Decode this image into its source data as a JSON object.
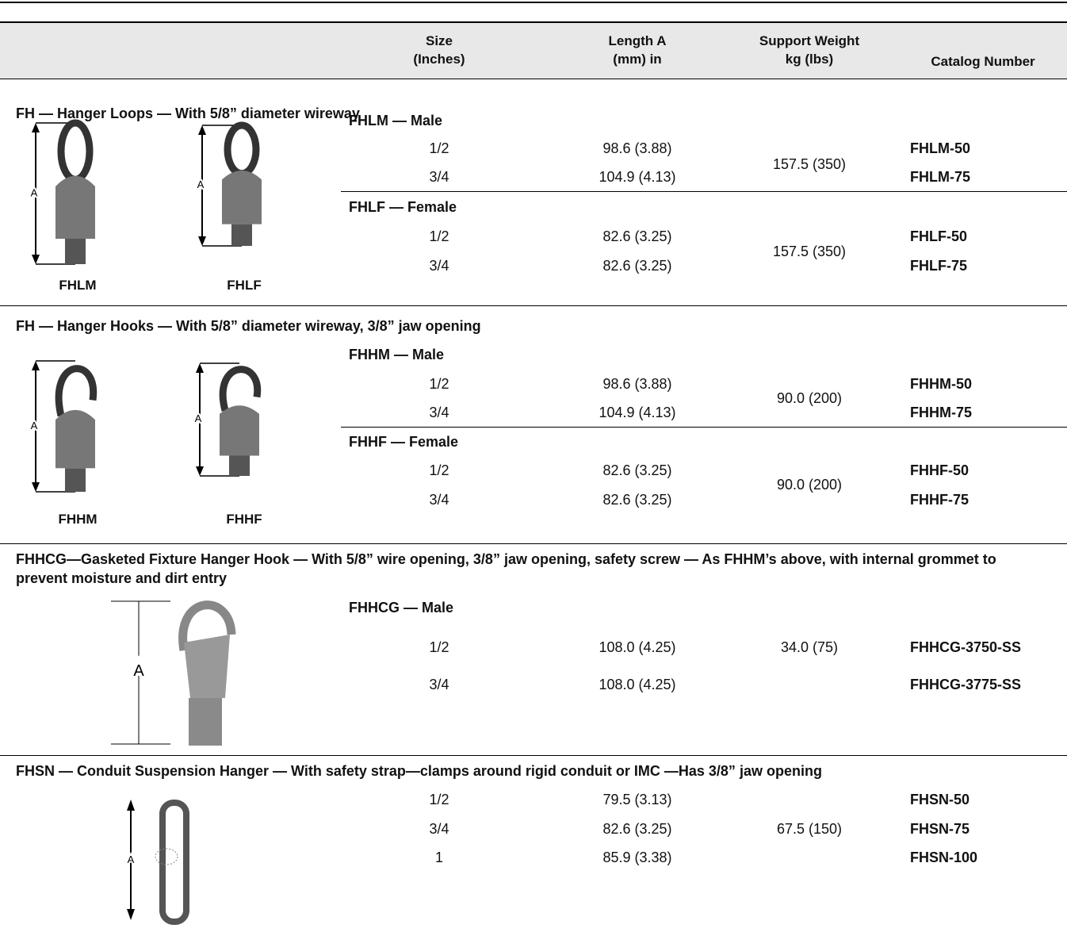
{
  "header": {
    "columns": [
      [
        "Size",
        "(Inches)"
      ],
      [
        "Length A",
        "(mm) in"
      ],
      [
        "Support Weight",
        "kg (lbs)"
      ],
      [
        "Catalog Number"
      ]
    ]
  },
  "sections": [
    {
      "title": "FH — Hanger Loops — With 5/8” diameter wireway",
      "images": [
        {
          "caption": "FHLM",
          "dimension": "A"
        },
        {
          "caption": "FHLF",
          "dimension": "A"
        }
      ],
      "groups": [
        {
          "subtitle": "FHLM — Male",
          "weight": "157.5 (350)",
          "rows": [
            [
              "1/2",
              "98.6 (3.88)",
              "FHLM-50"
            ],
            [
              "3/4",
              "104.9 (4.13)",
              "FHLM-75"
            ]
          ]
        },
        {
          "subtitle": "FHLF — Female",
          "weight": "157.5 (350)",
          "rows": [
            [
              "1/2",
              "82.6 (3.25)",
              "FHLF-50"
            ],
            [
              "3/4",
              "82.6 (3.25)",
              "FHLF-75"
            ]
          ]
        }
      ]
    },
    {
      "title": "FH — Hanger Hooks — With 5/8” diameter wireway, 3/8” jaw opening",
      "images": [
        {
          "caption": "FHHM",
          "dimension": "A"
        },
        {
          "caption": "FHHF",
          "dimension": "A"
        }
      ],
      "groups": [
        {
          "subtitle": "FHHM — Male",
          "weight": "90.0 (200)",
          "rows": [
            [
              "1/2",
              "98.6 (3.88)",
              "FHHM-50"
            ],
            [
              "3/4",
              "104.9 (4.13)",
              "FHHM-75"
            ]
          ]
        },
        {
          "subtitle": "FHHF — Female",
          "weight": "90.0 (200)",
          "rows": [
            [
              "1/2",
              "82.6 (3.25)",
              "FHHF-50"
            ],
            [
              "3/4",
              "82.6 (3.25)",
              "FHHF-75"
            ]
          ]
        }
      ]
    },
    {
      "title": "FHHCG—Gasketed Fixture Hanger Hook — With 5/8” wire opening, 3/8” jaw opening, safety screw — As FHHM’s above, with internal grommet to prevent moisture and dirt entry",
      "images": [
        {
          "dimension": "A"
        }
      ],
      "groups": [
        {
          "subtitle": "FHHCG — Male",
          "weight": "34.0 (75)",
          "rows": [
            [
              "1/2",
              "108.0 (4.25)",
              "FHHCG-3750-SS"
            ],
            [
              "3/4",
              "108.0 (4.25)",
              "FHHCG-3775-SS"
            ]
          ]
        }
      ]
    },
    {
      "title": "FHSN — Conduit Suspension Hanger — With safety strap—clamps around rigid conduit or IMC —Has 3/8” jaw opening",
      "images": [
        {
          "dimension": "A"
        }
      ],
      "groups": [
        {
          "weight": "67.5 (150)",
          "rows": [
            [
              "1/2",
              "79.5 (3.13)",
              "FHSN-50"
            ],
            [
              "3/4",
              "82.6 (3.25)",
              "FHSN-75"
            ],
            [
              "1",
              "85.9 (3.38)",
              "FHSN-100"
            ]
          ]
        }
      ]
    }
  ]
}
